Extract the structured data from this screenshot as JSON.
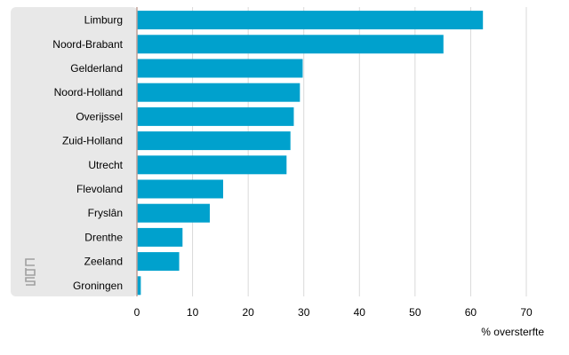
{
  "chart_data": {
    "type": "bar",
    "orientation": "horizontal",
    "categories": [
      "Limburg",
      "Noord-Brabant",
      "Gelderland",
      "Noord-Holland",
      "Overijssel",
      "Zuid-Holland",
      "Utrecht",
      "Flevoland",
      "Fryslân",
      "Drenthe",
      "Zeeland",
      "Groningen"
    ],
    "values": [
      62.2,
      55.1,
      29.8,
      29.3,
      28.2,
      27.6,
      26.9,
      15.5,
      13.1,
      8.2,
      7.6,
      0.7
    ],
    "xlabel": "% oversterfte",
    "xlim": [
      0,
      70
    ],
    "xticks": [
      0,
      10,
      20,
      30,
      40,
      50,
      60,
      70
    ],
    "grid": true,
    "colors": {
      "bar": "#00a1cd",
      "label_panel": "#e8e8e8",
      "grid": "#d9d9d9",
      "zero_axis": "#c0a098",
      "logo": "#a0a0a0"
    }
  },
  "logo": {
    "icon": "cbs-logo-icon"
  }
}
